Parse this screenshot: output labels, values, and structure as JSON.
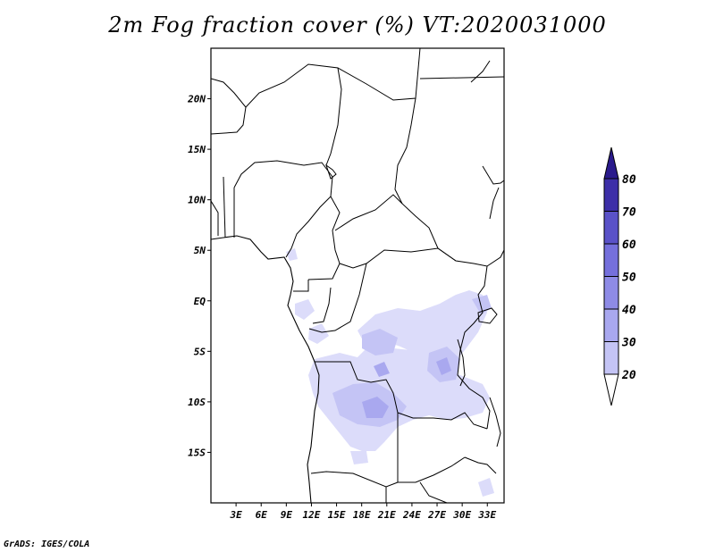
{
  "title": "2m Fog fraction cover (%) VT:2020031000",
  "credit": "GrADS: IGES/COLA",
  "map": {
    "lon_range": [
      0,
      35
    ],
    "lat_range": [
      -20,
      25
    ],
    "lat_ticks": [
      {
        "value": 20,
        "label": "20N"
      },
      {
        "value": 15,
        "label": "15N"
      },
      {
        "value": 10,
        "label": "10N"
      },
      {
        "value": 5,
        "label": "5N"
      },
      {
        "value": 0,
        "label": "EQ"
      },
      {
        "value": -5,
        "label": "5S"
      },
      {
        "value": -10,
        "label": "10S"
      },
      {
        "value": -15,
        "label": "15S"
      }
    ],
    "lon_ticks": [
      {
        "value": 3,
        "label": "3E"
      },
      {
        "value": 6,
        "label": "6E"
      },
      {
        "value": 9,
        "label": "9E"
      },
      {
        "value": 12,
        "label": "12E"
      },
      {
        "value": 15,
        "label": "15E"
      },
      {
        "value": 18,
        "label": "18E"
      },
      {
        "value": 21,
        "label": "21E"
      },
      {
        "value": 24,
        "label": "24E"
      },
      {
        "value": 27,
        "label": "27E"
      },
      {
        "value": 30,
        "label": "30E"
      },
      {
        "value": 33,
        "label": "33E"
      }
    ]
  },
  "legend": {
    "bins": [
      {
        "label": "20",
        "color": "#dcdcfa"
      },
      {
        "label": "30",
        "color": "#c4c4f5"
      },
      {
        "label": "40",
        "color": "#a9a8ef"
      },
      {
        "label": "50",
        "color": "#8e8be6"
      },
      {
        "label": "60",
        "color": "#7570dc"
      },
      {
        "label": "70",
        "color": "#5a52c8"
      },
      {
        "label": "80",
        "color": "#3d2fa8"
      }
    ],
    "top_color": "#2a1a8c"
  }
}
